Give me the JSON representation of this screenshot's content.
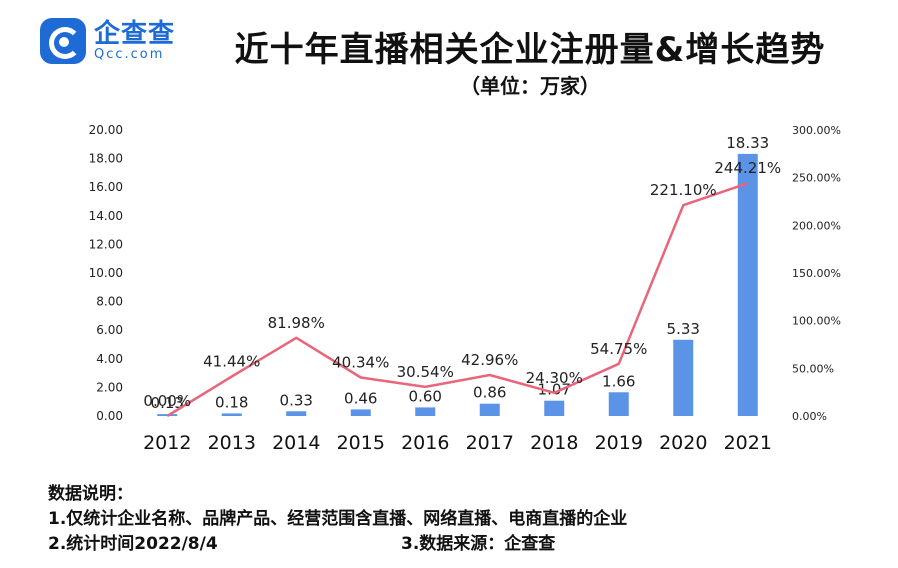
{
  "brand": {
    "name": "企查查",
    "domain": "Qcc.com"
  },
  "header": {
    "title": "近十年直播相关企业注册量&增长趋势",
    "subtitle": "（单位：万家）"
  },
  "chart_data": {
    "type": "bar",
    "categories": [
      "2012",
      "2013",
      "2014",
      "2015",
      "2016",
      "2017",
      "2018",
      "2019",
      "2020",
      "2021"
    ],
    "series": [
      {
        "type": "bar",
        "axis": "left",
        "values": [
          0.13,
          0.18,
          0.33,
          0.46,
          0.6,
          0.86,
          1.07,
          1.66,
          5.33,
          18.33
        ],
        "labels": [
          "0.13",
          "0.18",
          "0.33",
          "0.46",
          "0.60",
          "0.86",
          "1.07",
          "1.66",
          "5.33",
          "18.33"
        ],
        "color": "#5b93e6"
      },
      {
        "type": "line",
        "axis": "right",
        "values": [
          0.0,
          41.44,
          81.98,
          40.34,
          30.54,
          42.96,
          24.3,
          54.75,
          221.1,
          244.21
        ],
        "labels": [
          "0.00%",
          "41.44%",
          "81.98%",
          "40.34%",
          "30.54%",
          "42.96%",
          "24.30%",
          "54.75%",
          "221.10%",
          "244.21%"
        ],
        "color": "#e8657a"
      }
    ],
    "y_left": {
      "range": [
        0,
        20
      ],
      "ticks": [
        "0.00",
        "2.00",
        "4.00",
        "6.00",
        "8.00",
        "10.00",
        "12.00",
        "14.00",
        "16.00",
        "18.00",
        "20.00"
      ]
    },
    "y_right": {
      "range": [
        0,
        300
      ],
      "ticks": [
        "0.00%",
        "50.00%",
        "100.00%",
        "150.00%",
        "200.00%",
        "250.00%",
        "300.00%"
      ]
    },
    "grid": false,
    "legend": "none"
  },
  "notes": {
    "heading": "数据说明：",
    "line1": "1.仅统计企业名称、品牌产品、经营范围含直播、网络直播、电商直播的企业",
    "line2": "2.统计时间2022/8/4",
    "line3": "3.数据来源：企查查"
  }
}
